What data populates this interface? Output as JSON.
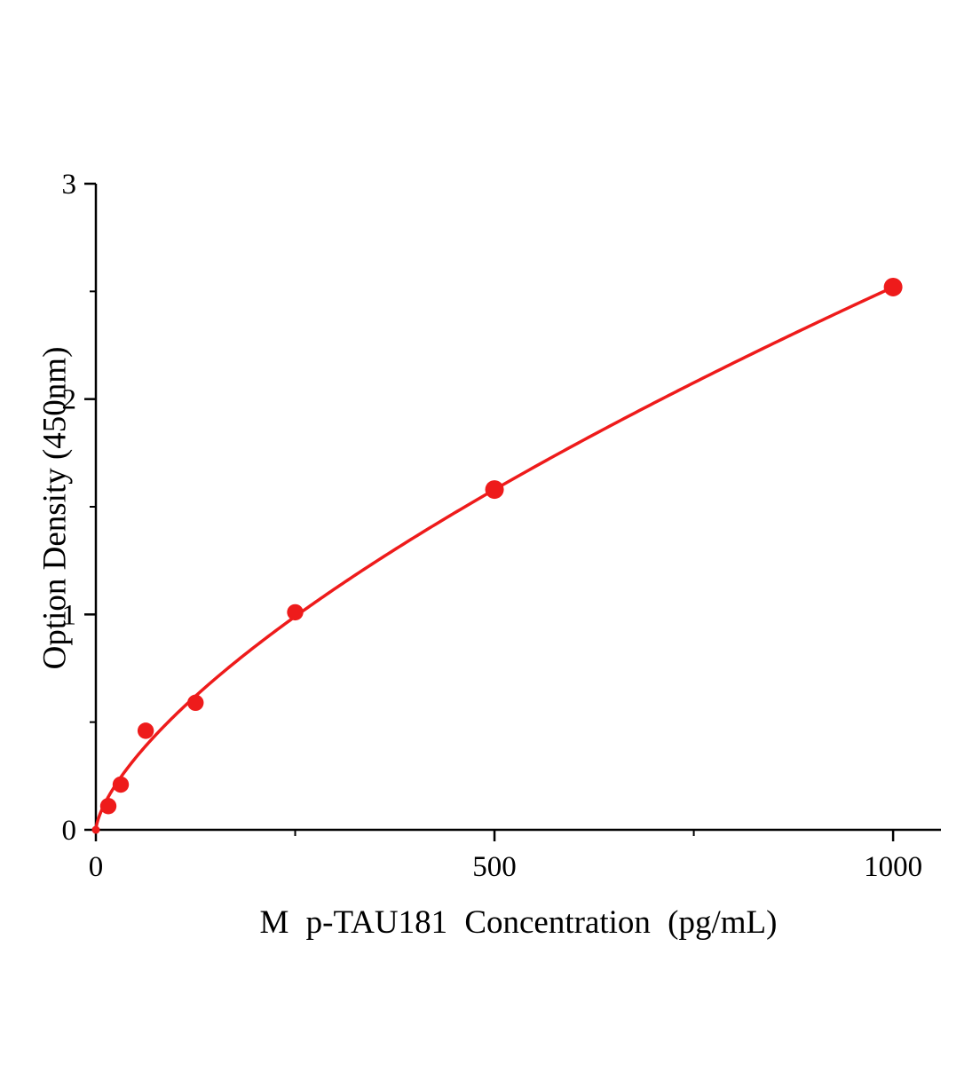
{
  "chart_data": {
    "type": "scatter",
    "title": "",
    "xlabel": "M p-TAU181 Concentration (pg/mL)",
    "ylabel": "Option Density (450nm)",
    "x": [
      0,
      15.6,
      31.2,
      62.5,
      125,
      250,
      500,
      1000
    ],
    "y": [
      0,
      0.11,
      0.21,
      0.46,
      0.59,
      1.01,
      1.58,
      2.52
    ],
    "xlim": [
      0,
      1060
    ],
    "ylim": [
      0,
      3
    ],
    "x_major_ticks": [
      0,
      500,
      1000
    ],
    "x_minor_ticks": [
      250,
      750
    ],
    "y_major_ticks": [
      0,
      1,
      2,
      3
    ],
    "y_minor_ticks": [
      0.5,
      1.5,
      2.5
    ],
    "curve_fit": {
      "model": "power",
      "a": 0.02402,
      "b": 0.6736
    },
    "point_color": "#ee1b1b",
    "curve_color": "#ee1b1b",
    "axis_color": "#000000",
    "point_radius": 10,
    "grid": false,
    "legend": "none"
  }
}
